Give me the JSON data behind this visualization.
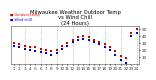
{
  "title": "Milwaukee Weather Outdoor Temp\nvs Wind Chill\n(24 Hours)",
  "title_fontsize": 3.8,
  "background_color": "#ffffff",
  "grid_color": "#999999",
  "ylim": [
    0,
    55
  ],
  "yticks": [
    10,
    20,
    30,
    40,
    50
  ],
  "ytick_labels": [
    "10",
    "20",
    "30",
    "40",
    "50"
  ],
  "ytick_fontsize": 3.0,
  "xtick_fontsize": 3.0,
  "hours": [
    1,
    2,
    3,
    4,
    5,
    6,
    7,
    8,
    9,
    10,
    11,
    12,
    13,
    14,
    15,
    16,
    17,
    18,
    19,
    20,
    21,
    22,
    23,
    24
  ],
  "temp": [
    30,
    28,
    26,
    25,
    24,
    22,
    20,
    18,
    20,
    26,
    30,
    35,
    38,
    40,
    38,
    35,
    32,
    28,
    25,
    18,
    12,
    8,
    45,
    50
  ],
  "windchill": [
    26,
    24,
    22,
    20,
    19,
    17,
    15,
    13,
    15,
    22,
    26,
    31,
    34,
    36,
    34,
    31,
    28,
    24,
    20,
    13,
    6,
    2,
    40,
    45
  ],
  "temp_color": "#cc0000",
  "windchill_color": "#0000cc",
  "black_color": "#000000",
  "marker_size": 3.0,
  "vline_hours": [
    3,
    6,
    9,
    12,
    15,
    18,
    21,
    24
  ]
}
